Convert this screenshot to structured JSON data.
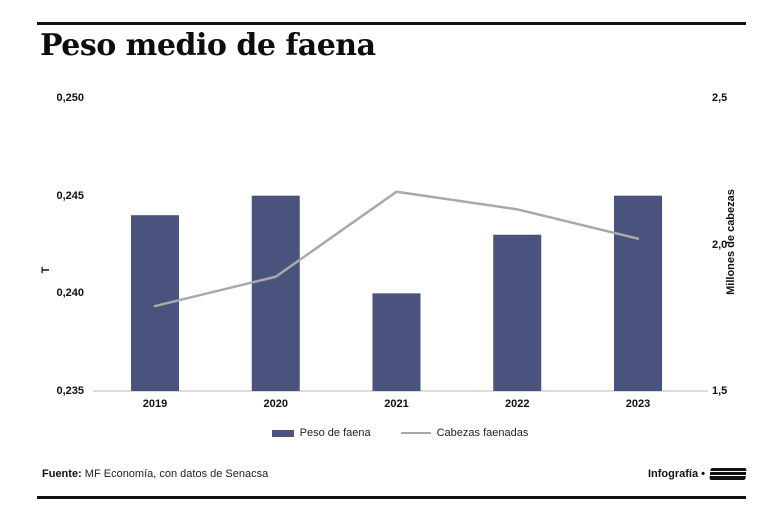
{
  "header": {
    "title": "Peso medio de faena"
  },
  "chart_data": {
    "type": "bar+line",
    "title": "Peso medio de faena",
    "categories": [
      "2019",
      "2020",
      "2021",
      "2022",
      "2023"
    ],
    "series": [
      {
        "name": "Peso de faena",
        "type": "bar",
        "axis": "left_axis",
        "color": "#4A527E",
        "values": [
          0.244,
          0.245,
          0.24,
          0.243,
          0.245
        ]
      },
      {
        "name": "Cabezas faenadas",
        "type": "line",
        "axis": "right_axis",
        "color": "#A9A9A9",
        "values": [
          1.79,
          1.89,
          2.18,
          2.12,
          2.02
        ]
      }
    ],
    "left_axis": {
      "label": "T",
      "min": 0.235,
      "max": 0.25,
      "ticks": [
        {
          "label": "0,250",
          "value": 0.25
        },
        {
          "label": "0,245",
          "value": 0.245
        },
        {
          "label": "0,240",
          "value": 0.24
        },
        {
          "label": "0,235",
          "value": 0.235
        }
      ]
    },
    "right_axis": {
      "label": "Millones de cabezas",
      "min": 1.5,
      "max": 2.5,
      "ticks": [
        {
          "label": "2,5",
          "value": 2.5
        },
        {
          "label": "2,0",
          "value": 2.0
        },
        {
          "label": "1,5",
          "value": 1.5
        }
      ]
    },
    "grid": false,
    "legend_position": "bottom"
  },
  "footer": {
    "source_label": "Fuente:",
    "source_text": "MF Economía, con datos de Senacsa",
    "credit_label": "Infografía •"
  },
  "colors": {
    "bar": "#4A527E",
    "line": "#A9A9A9",
    "baseline": "#DBDBDB",
    "rule": "#111111"
  }
}
